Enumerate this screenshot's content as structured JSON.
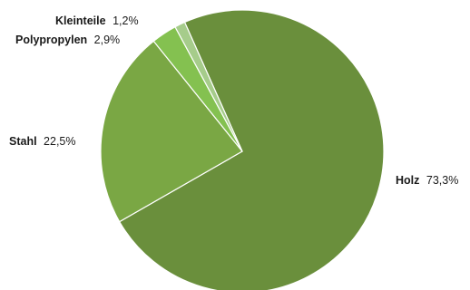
{
  "chart_data": {
    "type": "pie",
    "title": "",
    "start": "clockwise from the upper left, largest slice first",
    "slices": [
      {
        "name": "Holz",
        "value_label": "73,3%",
        "value": 73.3,
        "color": "#6a8f3c"
      },
      {
        "name": "Stahl",
        "value_label": "22,5%",
        "value": 22.5,
        "color": "#7aa744"
      },
      {
        "name": "Polypropylen",
        "value_label": "2,9%",
        "value": 2.9,
        "color": "#84c150"
      },
      {
        "name": "Kleinteile",
        "value_label": "1,2%",
        "value": 1.2,
        "color": "#a6cc8b"
      }
    ],
    "legend": "none",
    "labels": "outside, next to each slice"
  }
}
